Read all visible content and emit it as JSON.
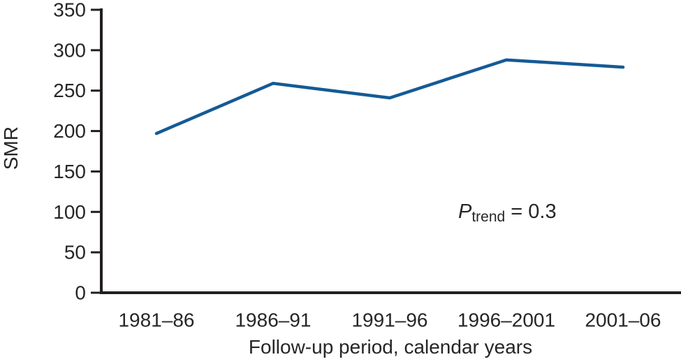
{
  "chart_data": {
    "type": "line",
    "categories": [
      "1981–86",
      "1986–91",
      "1991–96",
      "1996–2001",
      "2001–06"
    ],
    "values": [
      197,
      259,
      241,
      288,
      279
    ],
    "title": "",
    "xlabel": "Follow-up period, calendar years",
    "ylabel": "SMR",
    "ylim": [
      0,
      350
    ],
    "yticks": [
      0,
      50,
      100,
      150,
      200,
      250,
      300,
      350
    ],
    "grid": false,
    "legend": false,
    "annotation": {
      "symbol": "P",
      "subscript": "trend",
      "value": " = 0.3"
    },
    "line_color": "#155A96",
    "axis_color": "#231F20",
    "text_color": "#262626"
  }
}
